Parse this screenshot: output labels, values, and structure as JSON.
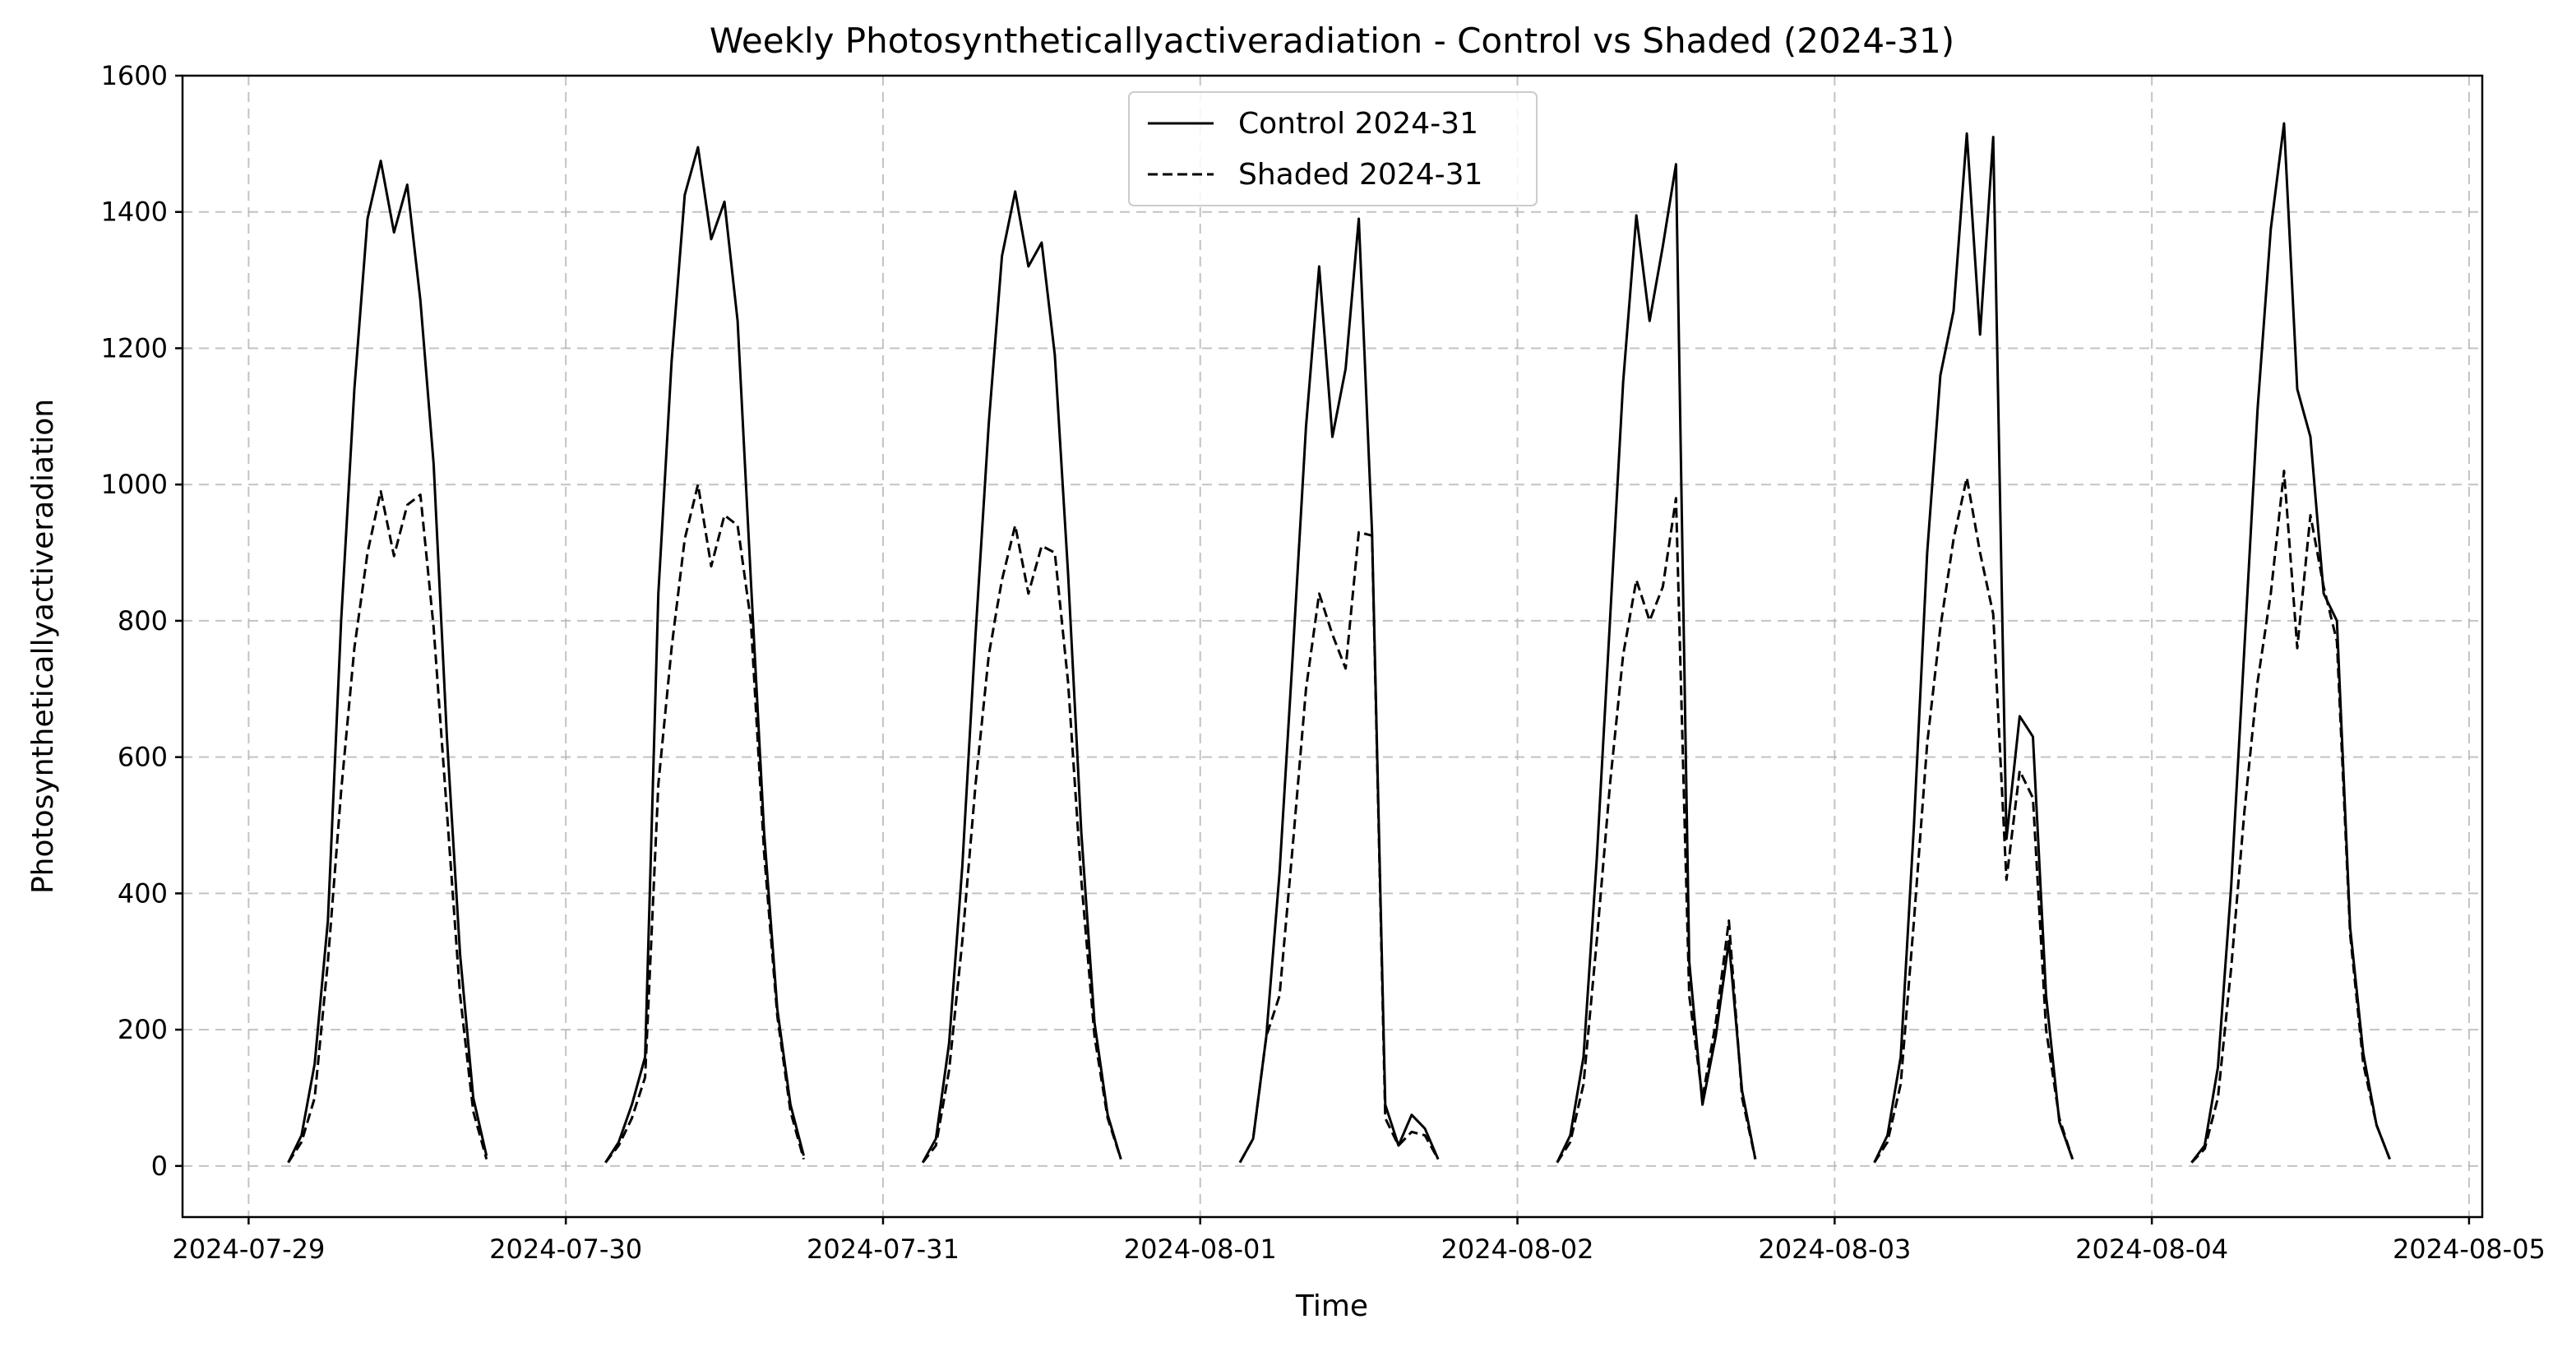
{
  "chart_data": {
    "type": "line",
    "title": "Weekly Photosyntheticallyactiveradiation - Control vs Shaded (2024-31)",
    "xlabel": "Time",
    "ylabel": "Photosyntheticallyactiveradiation",
    "ylim": [
      -75,
      1600
    ],
    "yticks": [
      0,
      200,
      400,
      600,
      800,
      1000,
      1200,
      1400,
      1600
    ],
    "xlim": [
      "2024-07-28T19:00",
      "2024-08-05T01:00"
    ],
    "xticks": [
      "2024-07-29",
      "2024-07-30",
      "2024-07-31",
      "2024-08-01",
      "2024-08-02",
      "2024-08-03",
      "2024-08-04",
      "2024-08-05"
    ],
    "grid": true,
    "legend": {
      "position": "top-center",
      "entries": [
        {
          "label": "Control 2024-31",
          "style": "solid"
        },
        {
          "label": "Shaded 2024-31",
          "style": "dashed"
        }
      ]
    },
    "line_color": "#000000",
    "series": [
      {
        "name": "Control 2024-31",
        "dash": "solid",
        "days": [
          {
            "date": "2024-07-29",
            "start_hour": 3,
            "values": [
              5,
              45,
              150,
              360,
              800,
              1140,
              1390,
              1475,
              1370,
              1440,
              1270,
              1030,
              630,
              310,
              100,
              15
            ]
          },
          {
            "date": "2024-07-30",
            "start_hour": 3,
            "values": [
              5,
              35,
              90,
              160,
              840,
              1180,
              1425,
              1495,
              1360,
              1415,
              1240,
              860,
              490,
              230,
              90,
              15
            ]
          },
          {
            "date": "2024-07-31",
            "start_hour": 3,
            "values": [
              5,
              40,
              180,
              440,
              780,
              1090,
              1335,
              1430,
              1320,
              1355,
              1190,
              870,
              490,
              210,
              75,
              10
            ]
          },
          {
            "date": "2024-08-01",
            "start_hour": 3,
            "values": [
              5,
              40,
              190,
              430,
              750,
              1085,
              1320,
              1070,
              1170,
              1390,
              930,
              90,
              30,
              75,
              55,
              10
            ]
          },
          {
            "date": "2024-08-02",
            "start_hour": 3,
            "values": [
              5,
              45,
              160,
              450,
              800,
              1150,
              1395,
              1240,
              1350,
              1470,
              300,
              90,
              190,
              330,
              110,
              10
            ]
          },
          {
            "date": "2024-08-03",
            "start_hour": 3,
            "values": [
              5,
              45,
              160,
              500,
              900,
              1160,
              1255,
              1515,
              1220,
              1510,
              480,
              660,
              630,
              250,
              65,
              10
            ]
          },
          {
            "date": "2024-08-04",
            "start_hour": 3,
            "values": [
              5,
              30,
              145,
              410,
              760,
              1110,
              1375,
              1530,
              1140,
              1070,
              840,
              800,
              350,
              165,
              60,
              10
            ]
          }
        ]
      },
      {
        "name": "Shaded 2024-31",
        "dash": "dashed",
        "days": [
          {
            "date": "2024-07-29",
            "start_hour": 3,
            "values": [
              5,
              35,
              100,
              300,
              550,
              760,
              900,
              990,
              895,
              970,
              985,
              790,
              520,
              250,
              80,
              10
            ]
          },
          {
            "date": "2024-07-30",
            "start_hour": 3,
            "values": [
              5,
              30,
              70,
              130,
              560,
              760,
              920,
              1000,
              880,
              955,
              940,
              800,
              460,
              220,
              80,
              10
            ]
          },
          {
            "date": "2024-07-31",
            "start_hour": 3,
            "values": [
              5,
              30,
              140,
              330,
              560,
              750,
              860,
              940,
              840,
              910,
              900,
              710,
              420,
              190,
              70,
              10
            ]
          },
          {
            "date": "2024-08-01",
            "start_hour": 3,
            "values": [
              5,
              40,
              190,
              250,
              470,
              700,
              840,
              780,
              730,
              930,
              925,
              70,
              30,
              50,
              45,
              10
            ]
          },
          {
            "date": "2024-08-02",
            "start_hour": 3,
            "values": [
              5,
              35,
              120,
              330,
              560,
              750,
              860,
              800,
              850,
              980,
              250,
              100,
              210,
              360,
              100,
              10
            ]
          },
          {
            "date": "2024-08-03",
            "start_hour": 3,
            "values": [
              5,
              35,
              120,
              360,
              620,
              790,
              920,
              1010,
              900,
              810,
              420,
              580,
              540,
              200,
              70,
              10
            ]
          },
          {
            "date": "2024-08-04",
            "start_hour": 3,
            "values": [
              5,
              25,
              100,
              290,
              520,
              710,
              840,
              1020,
              760,
              955,
              850,
              770,
              340,
              150,
              60,
              10
            ]
          }
        ]
      }
    ]
  }
}
